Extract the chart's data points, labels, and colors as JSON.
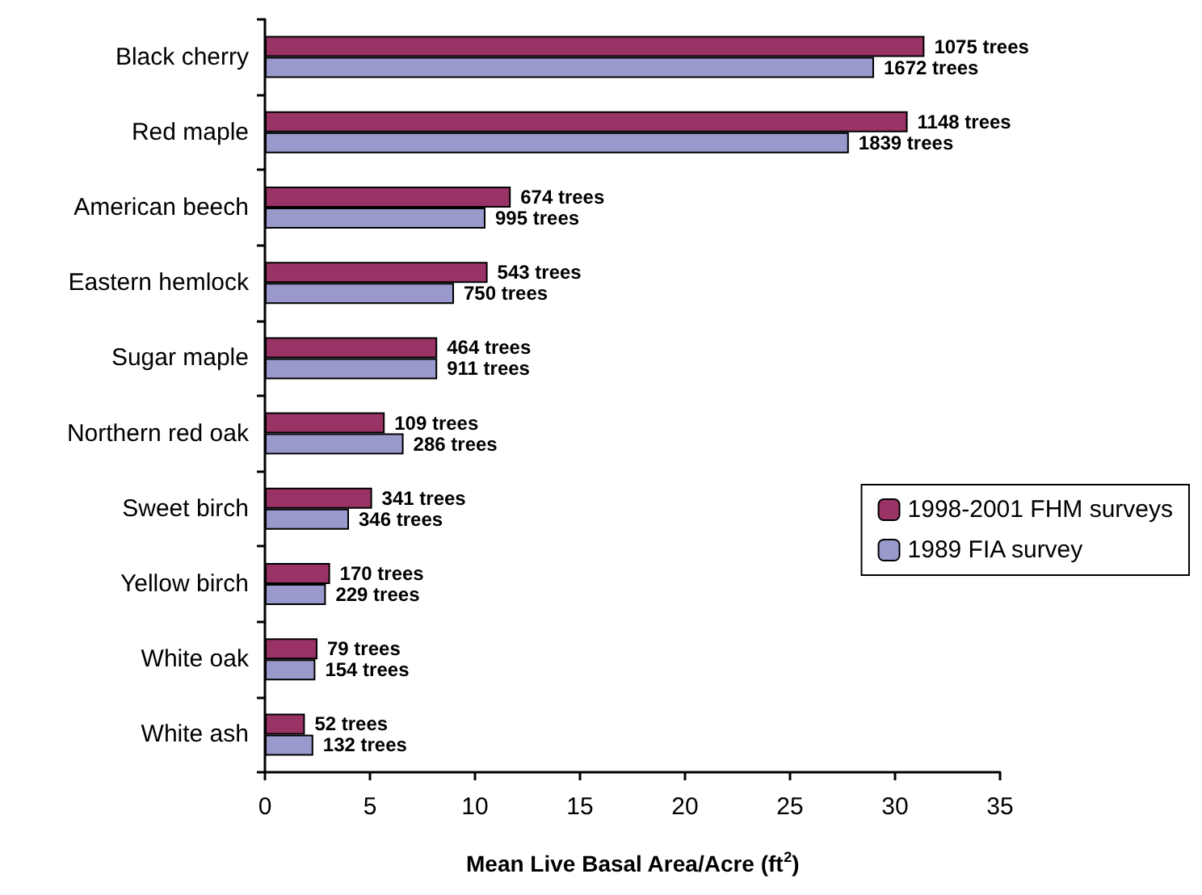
{
  "chart_data": {
    "type": "bar",
    "orientation": "horizontal",
    "xlabel": "Mean Live Basal Area/Acre (ft$^{2}$)",
    "categories": [
      "Black cherry",
      "Red maple",
      "American beech",
      "Eastern hemlock",
      "Sugar maple",
      "Northern red oak",
      "Sweet birch",
      "Yellow birch",
      "White oak",
      "White ash"
    ],
    "series": [
      {
        "name": "1998-2001 FHM surveys",
        "color": "#993366",
        "values": [
          31.4,
          30.6,
          11.7,
          10.6,
          8.2,
          5.7,
          5.1,
          3.1,
          2.5,
          1.9
        ]
      },
      {
        "name": "1989 FIA survey",
        "color": "#9999cc",
        "values": [
          29.0,
          27.8,
          10.5,
          9.0,
          8.2,
          6.6,
          4.0,
          2.9,
          2.4,
          2.3
        ]
      }
    ],
    "annotations": [
      "1075 trees",
      "1672 trees",
      "1148 trees",
      "1839 trees",
      "674 trees",
      "995 trees",
      "543 trees",
      "750 trees",
      "464 trees",
      "911 trees",
      "109 trees",
      "286 trees",
      "341 trees",
      "346 trees",
      "170 trees",
      "229 trees",
      "79 trees",
      "154 trees",
      "52 trees",
      "132 trees"
    ],
    "xlim": [
      0,
      35
    ],
    "xticks": [
      0,
      5,
      10,
      15,
      20,
      25,
      30,
      35
    ],
    "grid": false,
    "legend": "right"
  }
}
